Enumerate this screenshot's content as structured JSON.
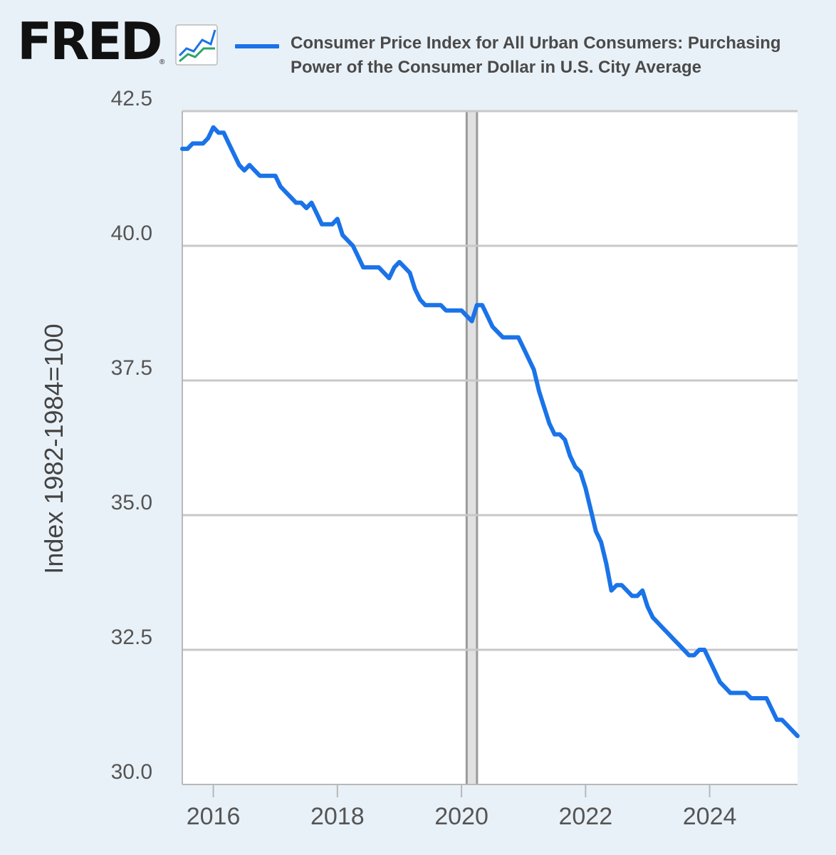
{
  "header": {
    "logo_text": "FRED",
    "logo_registered": "®",
    "logo_icon": "fred-line-chart-icon"
  },
  "colors": {
    "page_background": "#e9f1f8",
    "plot_background": "#ffffff",
    "series_line": "#1a73e8",
    "gridline": "#c8c8c8",
    "recession_shade": "#e1e1e1"
  },
  "chart_data": {
    "type": "line",
    "title": "",
    "xlabel": "",
    "ylabel": "Index 1982-1984=100",
    "ylim": [
      30.0,
      42.5
    ],
    "xlim": [
      "2015-07",
      "2025-06"
    ],
    "y_ticks": [
      "42.5",
      "40.0",
      "37.5",
      "35.0",
      "32.5",
      "30.0"
    ],
    "x_ticks": [
      "2016",
      "2018",
      "2020",
      "2022",
      "2024"
    ],
    "grid": true,
    "legend": "top",
    "recession_shading": [
      {
        "start": "2020-02",
        "end": "2020-04"
      }
    ],
    "series": [
      {
        "name": "Consumer Price Index for All Urban Consumers: Purchasing Power of the Consumer Dollar in U.S. City Average",
        "x": [
          "2015-07",
          "2015-08",
          "2015-09",
          "2015-10",
          "2015-11",
          "2015-12",
          "2016-01",
          "2016-02",
          "2016-03",
          "2016-04",
          "2016-05",
          "2016-06",
          "2016-07",
          "2016-08",
          "2016-09",
          "2016-10",
          "2016-11",
          "2016-12",
          "2017-01",
          "2017-02",
          "2017-03",
          "2017-04",
          "2017-05",
          "2017-06",
          "2017-07",
          "2017-08",
          "2017-09",
          "2017-10",
          "2017-11",
          "2017-12",
          "2018-01",
          "2018-02",
          "2018-03",
          "2018-04",
          "2018-05",
          "2018-06",
          "2018-07",
          "2018-08",
          "2018-09",
          "2018-10",
          "2018-11",
          "2018-12",
          "2019-01",
          "2019-02",
          "2019-03",
          "2019-04",
          "2019-05",
          "2019-06",
          "2019-07",
          "2019-08",
          "2019-09",
          "2019-10",
          "2019-11",
          "2019-12",
          "2020-01",
          "2020-02",
          "2020-03",
          "2020-04",
          "2020-05",
          "2020-06",
          "2020-07",
          "2020-08",
          "2020-09",
          "2020-10",
          "2020-11",
          "2020-12",
          "2021-01",
          "2021-02",
          "2021-03",
          "2021-04",
          "2021-05",
          "2021-06",
          "2021-07",
          "2021-08",
          "2021-09",
          "2021-10",
          "2021-11",
          "2021-12",
          "2022-01",
          "2022-02",
          "2022-03",
          "2022-04",
          "2022-05",
          "2022-06",
          "2022-07",
          "2022-08",
          "2022-09",
          "2022-10",
          "2022-11",
          "2022-12",
          "2023-01",
          "2023-02",
          "2023-03",
          "2023-04",
          "2023-05",
          "2023-06",
          "2023-07",
          "2023-08",
          "2023-09",
          "2023-10",
          "2023-11",
          "2023-12",
          "2024-01",
          "2024-02",
          "2024-03",
          "2024-04",
          "2024-05",
          "2024-06",
          "2024-07",
          "2024-08",
          "2024-09",
          "2024-10",
          "2024-11",
          "2024-12",
          "2025-01",
          "2025-02",
          "2025-03",
          "2025-04",
          "2025-05",
          "2025-06"
        ],
        "values": [
          41.8,
          41.8,
          41.9,
          41.9,
          41.9,
          42.0,
          42.2,
          42.1,
          42.1,
          41.9,
          41.7,
          41.5,
          41.4,
          41.5,
          41.4,
          41.3,
          41.3,
          41.3,
          41.3,
          41.1,
          41.0,
          40.9,
          40.8,
          40.8,
          40.7,
          40.8,
          40.6,
          40.4,
          40.4,
          40.4,
          40.5,
          40.2,
          40.1,
          40.0,
          39.8,
          39.6,
          39.6,
          39.6,
          39.6,
          39.5,
          39.4,
          39.6,
          39.7,
          39.6,
          39.5,
          39.2,
          39.0,
          38.9,
          38.9,
          38.9,
          38.9,
          38.8,
          38.8,
          38.8,
          38.8,
          38.7,
          38.6,
          38.9,
          38.9,
          38.7,
          38.5,
          38.4,
          38.3,
          38.3,
          38.3,
          38.3,
          38.1,
          37.9,
          37.7,
          37.3,
          37.0,
          36.7,
          36.5,
          36.5,
          36.4,
          36.1,
          35.9,
          35.8,
          35.5,
          35.1,
          34.7,
          34.5,
          34.1,
          33.6,
          33.7,
          33.7,
          33.6,
          33.5,
          33.5,
          33.6,
          33.3,
          33.1,
          33.0,
          32.9,
          32.8,
          32.7,
          32.6,
          32.5,
          32.4,
          32.4,
          32.5,
          32.5,
          32.3,
          32.1,
          31.9,
          31.8,
          31.7,
          31.7,
          31.7,
          31.7,
          31.6,
          31.6,
          31.6,
          31.6,
          31.4,
          31.2,
          31.2,
          31.1,
          31.0,
          30.9
        ]
      }
    ]
  }
}
